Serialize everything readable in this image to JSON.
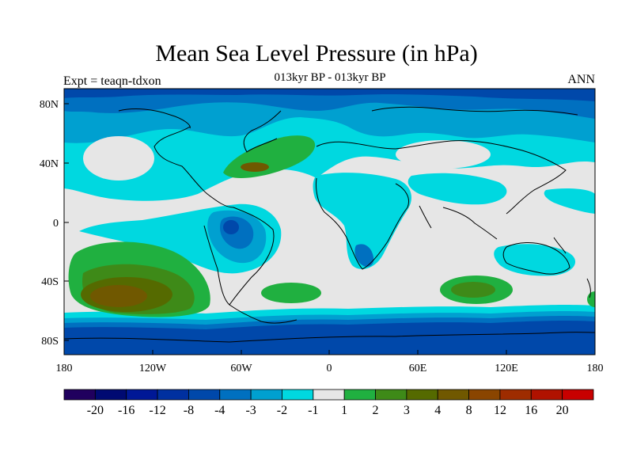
{
  "title": "Mean Sea Level Pressure (in hPa)",
  "subtitle": "013kyr BP - 013kyr BP",
  "left_label": "Expt = teaqn-tdxon",
  "right_label": "ANN",
  "axes": {
    "x_ticks": [
      "180",
      "120W",
      "60W",
      "0",
      "60E",
      "120E",
      "180"
    ],
    "y_ticks": [
      "80N",
      "40N",
      "0",
      "40S",
      "80S"
    ]
  },
  "colorbar": {
    "colors": [
      "#20005e",
      "#000a72",
      "#001896",
      "#0030a0",
      "#0048aa",
      "#0070c0",
      "#00a0d0",
      "#00d8e0",
      "#e6e6e6",
      "#20b040",
      "#3e8a18",
      "#556a00",
      "#705800",
      "#8a4500",
      "#9e2c00",
      "#b01200",
      "#c80000"
    ],
    "labels": [
      "-20",
      "-16",
      "-12",
      "-8",
      "-4",
      "-3",
      "-2",
      "-1",
      "1",
      "2",
      "3",
      "4",
      "8",
      "12",
      "16",
      "20"
    ]
  }
}
